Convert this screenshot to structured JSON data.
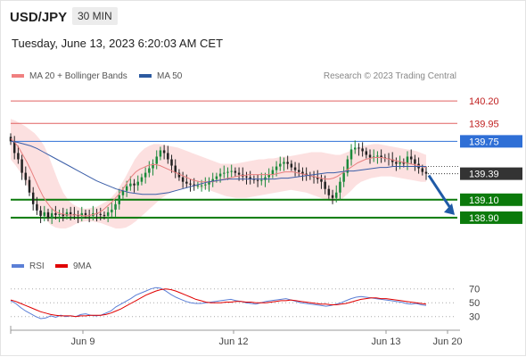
{
  "header": {
    "pair": "USD/JPY",
    "timeframe": "30 MIN"
  },
  "timestamp": "Tuesday, June 13, 2023 6:20:03 AM CET",
  "legend": {
    "ma20": {
      "label": "MA 20 + Bollinger Bands",
      "color": "#f08080"
    },
    "ma50": {
      "label": "MA 50",
      "color": "#2c5aa0"
    },
    "rsi": {
      "label": "RSI",
      "color": "#5b7fd6"
    },
    "ma9": {
      "label": "9MA",
      "color": "#e00000"
    }
  },
  "credit": "Research © 2023 Trading Central",
  "chart_data": {
    "type": "candlestick",
    "ylim": [
      138.74,
      140.36
    ],
    "x_ticks": [
      "Jun 9",
      "Jun 12",
      "Jun 13",
      "Jun 20"
    ],
    "current_price": "139.39",
    "levels": [
      {
        "label": "140.20",
        "value": 140.2,
        "kind": "resistance-thin",
        "color": "#e06060"
      },
      {
        "label": "139.95",
        "value": 139.95,
        "kind": "resistance-thin",
        "color": "#e06060"
      },
      {
        "label": "139.75",
        "value": 139.75,
        "kind": "pivot",
        "color": "#2f6fd6"
      },
      {
        "label": "139.10",
        "value": 139.1,
        "kind": "support",
        "color": "#0b7a0b"
      },
      {
        "label": "138.90",
        "value": 138.9,
        "kind": "support",
        "color": "#0b7a0b"
      }
    ],
    "close": [
      139.75,
      139.62,
      139.55,
      139.4,
      139.32,
      139.18,
      139.05,
      138.98,
      138.92,
      138.96,
      138.9,
      138.95,
      138.93,
      138.94,
      138.92,
      138.96,
      138.94,
      138.93,
      138.92,
      138.95,
      138.93,
      138.92,
      138.95,
      138.94,
      138.93,
      138.92,
      138.96,
      138.99,
      139.05,
      139.15,
      139.2,
      139.25,
      139.28,
      139.26,
      139.3,
      139.35,
      139.4,
      139.45,
      139.5,
      139.58,
      139.65,
      139.62,
      139.55,
      139.48,
      139.4,
      139.35,
      139.3,
      139.28,
      139.27,
      139.26,
      139.26,
      139.26,
      139.27,
      139.3,
      139.33,
      139.36,
      139.39,
      139.4,
      139.41,
      139.42,
      139.4,
      139.38,
      139.36,
      139.35,
      139.33,
      139.32,
      139.31,
      139.32,
      139.35,
      139.38,
      139.43,
      139.47,
      139.5,
      139.52,
      139.5,
      139.46,
      139.43,
      139.41,
      139.39,
      139.37,
      139.36,
      139.35,
      139.33,
      139.3,
      139.22,
      139.15,
      139.12,
      139.18,
      139.3,
      139.4,
      139.55,
      139.66,
      139.68,
      139.67,
      139.64,
      139.6,
      139.57,
      139.58,
      139.59,
      139.57,
      139.56,
      139.55,
      139.52,
      139.5,
      139.52,
      139.5,
      139.58,
      139.55,
      139.5,
      139.45,
      139.41,
      139.39
    ],
    "ma20": [
      139.78,
      139.74,
      139.68,
      139.6,
      139.52,
      139.43,
      139.33,
      139.23,
      139.14,
      139.07,
      139.01,
      138.97,
      138.95,
      138.94,
      138.93,
      138.93,
      138.93,
      138.93,
      138.92,
      138.92,
      138.93,
      138.94,
      138.96,
      138.99,
      139.03,
      139.07,
      139.12,
      139.17,
      139.23,
      139.3,
      139.36,
      139.41,
      139.44,
      139.46,
      139.48,
      139.49,
      139.49,
      139.48,
      139.46,
      139.44,
      139.42,
      139.4,
      139.38,
      139.36,
      139.34,
      139.32,
      139.31,
      139.3,
      139.3,
      139.3,
      139.3,
      139.31,
      139.32,
      139.33,
      139.34,
      139.35,
      139.36,
      139.37,
      139.37,
      139.38,
      139.38,
      139.38,
      139.38,
      139.38,
      139.38,
      139.38,
      139.39,
      139.4,
      139.41,
      139.41,
      139.41,
      139.4,
      139.39,
      139.38,
      139.37,
      139.36,
      139.35,
      139.34,
      139.33,
      139.33,
      139.34,
      139.36,
      139.39,
      139.42,
      139.45,
      139.48,
      139.51,
      139.53,
      139.55,
      139.56,
      139.57,
      139.57,
      139.57,
      139.56,
      139.55,
      139.54,
      139.53,
      139.52,
      139.51,
      139.5,
      139.49,
      139.48,
      139.47,
      139.46
    ],
    "bb_upper": [
      140.0,
      139.98,
      139.95,
      139.92,
      139.88,
      139.84,
      139.78,
      139.7,
      139.58,
      139.44,
      139.3,
      139.18,
      139.1,
      139.05,
      139.02,
      139.0,
      139.0,
      139.01,
      139.02,
      139.05,
      139.08,
      139.12,
      139.18,
      139.26,
      139.35,
      139.45,
      139.55,
      139.62,
      139.67,
      139.7,
      139.72,
      139.72,
      139.71,
      139.7,
      139.69,
      139.68,
      139.66,
      139.64,
      139.62,
      139.6,
      139.58,
      139.56,
      139.54,
      139.52,
      139.5,
      139.5,
      139.5,
      139.5,
      139.51,
      139.52,
      139.53,
      139.54,
      139.55,
      139.55,
      139.56,
      139.56,
      139.57,
      139.58,
      139.58,
      139.59,
      139.6,
      139.61,
      139.62,
      139.63,
      139.63,
      139.63,
      139.62,
      139.61,
      139.6,
      139.6,
      139.62,
      139.64,
      139.66,
      139.68,
      139.7,
      139.71,
      139.72,
      139.72,
      139.71,
      139.7,
      139.69,
      139.68,
      139.67,
      139.66,
      139.65,
      139.64,
      139.62,
      139.6
    ],
    "bb_lower": [
      139.55,
      139.48,
      139.4,
      139.3,
      139.18,
      139.05,
      138.95,
      138.88,
      138.82,
      138.79,
      138.78,
      138.78,
      138.8,
      138.83,
      138.85,
      138.86,
      138.86,
      138.85,
      138.84,
      138.82,
      138.8,
      138.78,
      138.78,
      138.79,
      138.82,
      138.86,
      138.91,
      138.96,
      139.01,
      139.06,
      139.11,
      139.15,
      139.18,
      139.2,
      139.22,
      139.23,
      139.24,
      139.24,
      139.23,
      139.22,
      139.2,
      139.18,
      139.16,
      139.14,
      139.13,
      139.12,
      139.12,
      139.12,
      139.13,
      139.14,
      139.15,
      139.16,
      139.17,
      139.18,
      139.19,
      139.2,
      139.21,
      139.2,
      139.19,
      139.18,
      139.16,
      139.14,
      139.12,
      139.1,
      139.08,
      139.08,
      139.1,
      139.15,
      139.2,
      139.26,
      139.3,
      139.32,
      139.34,
      139.35,
      139.36,
      139.36,
      139.36,
      139.35,
      139.34,
      139.33,
      139.32,
      139.31,
      139.3,
      139.3
    ],
    "ma50": [
      139.75,
      139.74,
      139.72,
      139.7,
      139.67,
      139.63,
      139.59,
      139.55,
      139.51,
      139.47,
      139.43,
      139.39,
      139.35,
      139.31,
      139.28,
      139.25,
      139.22,
      139.2,
      139.18,
      139.17,
      139.16,
      139.16,
      139.16,
      139.17,
      139.18,
      139.2,
      139.22,
      139.24,
      139.26,
      139.28,
      139.3,
      139.31,
      139.32,
      139.33,
      139.33,
      139.33,
      139.33,
      139.33,
      139.33,
      139.33,
      139.33,
      139.34,
      139.34,
      139.35,
      139.36,
      139.37,
      139.38,
      139.39,
      139.4,
      139.4,
      139.41,
      139.42,
      139.42,
      139.43,
      139.44,
      139.45,
      139.46,
      139.46,
      139.47,
      139.47,
      139.47,
      139.47,
      139.47,
      139.47
    ],
    "rsi": {
      "ticks": [
        70,
        50,
        30
      ],
      "ylim": [
        18,
        80
      ],
      "rsi": [
        53,
        49,
        43,
        38,
        34,
        30,
        27,
        28,
        31,
        29,
        32,
        30,
        31,
        30,
        33,
        34,
        32,
        31,
        32,
        35,
        38,
        44,
        48,
        52,
        56,
        61,
        64,
        67,
        70,
        72,
        71,
        67,
        62,
        58,
        55,
        52,
        50,
        49,
        49,
        50,
        51,
        52,
        53,
        54,
        55,
        53,
        52,
        50,
        49,
        48,
        50,
        52,
        53,
        54,
        55,
        56,
        54,
        52,
        50,
        49,
        48,
        47,
        46,
        45,
        46,
        48,
        50,
        53,
        56,
        58,
        59,
        58,
        57,
        56,
        55,
        54,
        53,
        52,
        51,
        49,
        48,
        49,
        47,
        46
      ],
      "ma9": [
        54,
        52,
        49,
        46,
        43,
        40,
        37,
        35,
        33,
        32,
        31,
        31,
        31,
        30,
        31,
        31,
        32,
        32,
        32,
        33,
        35,
        38,
        41,
        45,
        49,
        53,
        57,
        61,
        64,
        67,
        69,
        70,
        69,
        67,
        64,
        61,
        58,
        55,
        53,
        51,
        50,
        50,
        50,
        51,
        51,
        52,
        52,
        51,
        51,
        50,
        50,
        50,
        51,
        52,
        53,
        53,
        54,
        53,
        52,
        51,
        50,
        49,
        48,
        48,
        47,
        47,
        48,
        49,
        51,
        53,
        55,
        56,
        57,
        57,
        56,
        56,
        55,
        54,
        53,
        52,
        51,
        50,
        49,
        48
      ]
    }
  }
}
